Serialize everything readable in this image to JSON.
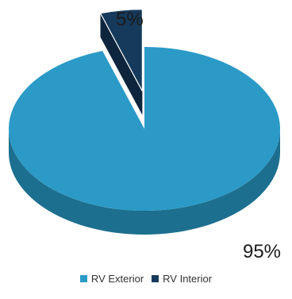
{
  "chart_data": {
    "type": "pie",
    "style": "3d",
    "categories": [
      "RV Exterior",
      "RV Interior"
    ],
    "values": [
      95,
      5
    ],
    "data_labels": [
      "95%",
      "5%"
    ],
    "exploded": "RV Interior",
    "legend_position": "bottom",
    "colors": {
      "RV Exterior": "#2b9ac7",
      "RV Exterior side": "#1d6f8f",
      "RV Interior": "#163a5b",
      "RV Interior side": "#0e263d"
    }
  }
}
